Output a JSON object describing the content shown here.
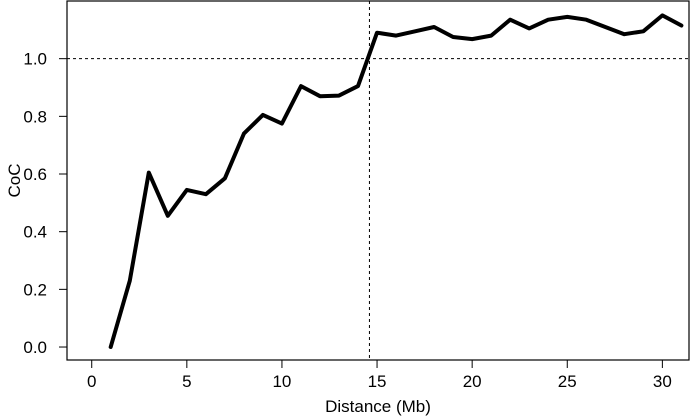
{
  "chart_data": {
    "type": "line",
    "title": "",
    "xlabel": "Distance (Mb)",
    "ylabel": "CoC",
    "xlim": [
      -1.3,
      31.4
    ],
    "ylim": [
      -0.045,
      1.2
    ],
    "xticks": [
      0,
      5,
      10,
      15,
      20,
      25,
      30
    ],
    "yticks": [
      0.0,
      0.2,
      0.4,
      0.6,
      0.8,
      1.0
    ],
    "xtick_labels": [
      "0",
      "5",
      "10",
      "15",
      "20",
      "25",
      "30"
    ],
    "ytick_labels": [
      "0.0",
      "0.2",
      "0.4",
      "0.6",
      "0.8",
      "1.0"
    ],
    "reference_lines": {
      "horizontal_y": 1.0,
      "vertical_x": 14.6,
      "style": "dashed"
    },
    "grid": false,
    "legend": "none",
    "line_color": "#000000",
    "series": [
      {
        "x": [
          1,
          2,
          3,
          4,
          5,
          6,
          7,
          8,
          9,
          10,
          11,
          12,
          13,
          14,
          15,
          16,
          17,
          18,
          19,
          20,
          21,
          22,
          23,
          24,
          25,
          26,
          27,
          28,
          29,
          30,
          31
        ],
        "values": [
          0.0,
          0.23,
          0.605,
          0.455,
          0.545,
          0.53,
          0.585,
          0.74,
          0.805,
          0.775,
          0.905,
          0.87,
          0.872,
          0.905,
          1.09,
          1.08,
          1.095,
          1.11,
          1.075,
          1.068,
          1.08,
          1.135,
          1.105,
          1.135,
          1.145,
          1.135,
          1.11,
          1.085,
          1.095,
          1.15,
          1.115
        ]
      }
    ]
  }
}
